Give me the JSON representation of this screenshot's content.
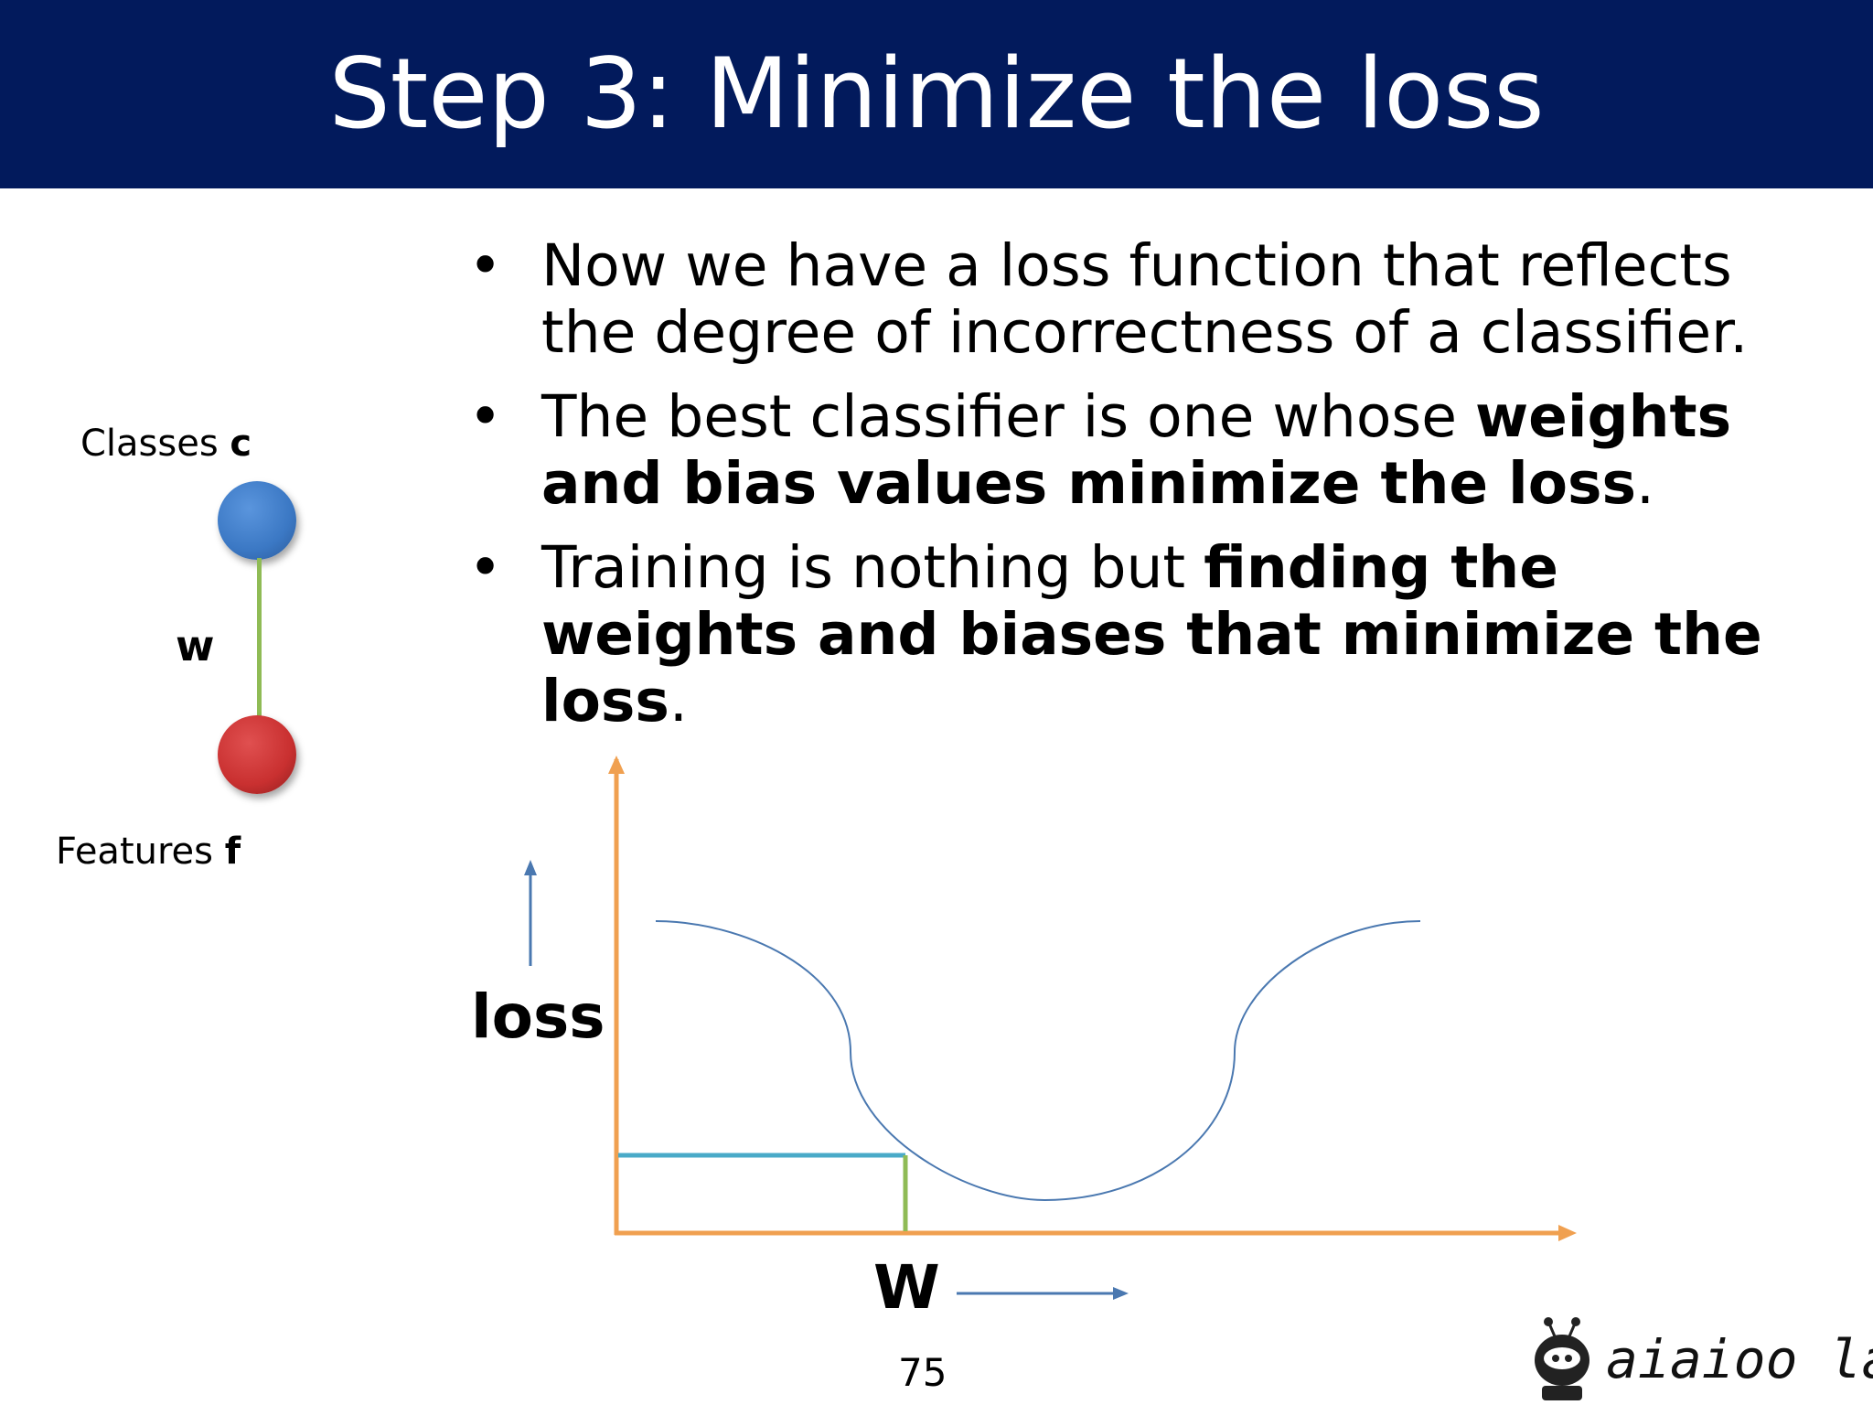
{
  "slide": {
    "title": "Step 3: Minimize the loss",
    "page_number": "75",
    "header_color": "#021a5c"
  },
  "bullets": [
    {
      "parts": [
        {
          "text": "Now we have a loss function that reflects the degree of incorrectness of a classifier.",
          "bold": false
        }
      ]
    },
    {
      "parts": [
        {
          "text": "The best classifier is one whose ",
          "bold": false
        },
        {
          "text": "weights and bias values minimize the loss",
          "bold": true
        },
        {
          "text": ".",
          "bold": false
        }
      ]
    },
    {
      "parts": [
        {
          "text": "Training is nothing but ",
          "bold": false
        },
        {
          "text": "finding the weights and biases that minimize the loss",
          "bold": true
        },
        {
          "text": ".",
          "bold": false
        }
      ]
    }
  ],
  "network": {
    "classes_label": "Classes ",
    "classes_var": "c",
    "features_label": "Features ",
    "features_var": "f",
    "weight_label": "w",
    "class_node_color": "#3b78c4",
    "feature_node_color": "#c93030",
    "edge_color": "#8fbb55"
  },
  "diagram": {
    "y_label": "loss",
    "x_label": "W",
    "axis_color": "#f0a050",
    "curve_color": "#4a78b0",
    "hline_color": "#4aaac8",
    "vline_color": "#8fbb55"
  },
  "brand": {
    "name": "aiaioo labs",
    "logo_icon": "robot-icon"
  }
}
